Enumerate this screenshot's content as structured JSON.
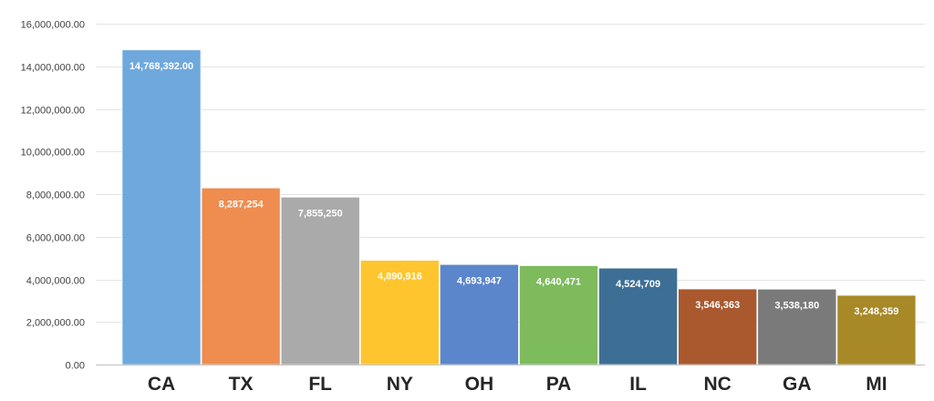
{
  "chart_data": {
    "type": "bar",
    "categories": [
      "CA",
      "TX",
      "FL",
      "NY",
      "OH",
      "PA",
      "IL",
      "NC",
      "GA",
      "MI"
    ],
    "values": [
      14768392,
      8287254,
      7855250,
      4890916,
      4693947,
      4640471,
      4524709,
      3546363,
      3538180,
      3248359
    ],
    "value_labels": [
      "14,768,392.00",
      "8,287,254",
      "7,855,250",
      "4,890,916",
      "4,693,947",
      "4,640,471",
      "4,524,709",
      "3,546,363",
      "3,538,180",
      "3,248,359"
    ],
    "colors": [
      "#6fa8dc",
      "#ef8c4f",
      "#aaaaaa",
      "#fec52e",
      "#5b86cc",
      "#7dbb5c",
      "#3d6f96",
      "#a9592d",
      "#7a7a7a",
      "#a88927"
    ],
    "ytick_labels": [
      "0.00",
      "2,000,000.00",
      "4,000,000.00",
      "6,000,000.00",
      "8,000,000.00",
      "10,000,000.00",
      "12,000,000.00",
      "14,000,000.00",
      "16,000,000.00"
    ],
    "ytick_values": [
      0,
      2000000,
      4000000,
      6000000,
      8000000,
      10000000,
      12000000,
      14000000,
      16000000
    ],
    "ylim": [
      0,
      16000000
    ],
    "grid": true,
    "legend": "none",
    "title": "",
    "xlabel": "",
    "ylabel": ""
  }
}
